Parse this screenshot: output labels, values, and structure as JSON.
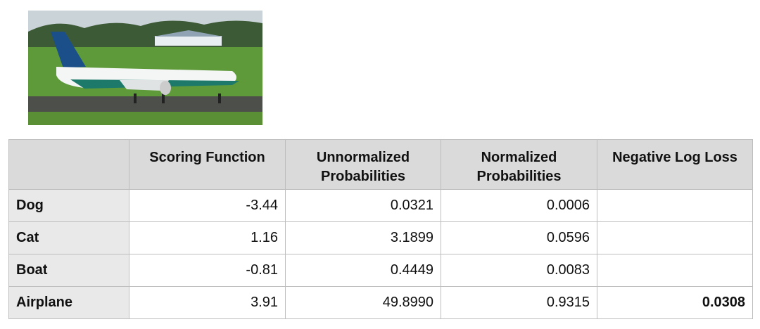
{
  "table": {
    "header": [
      "Scoring Function",
      "Unnormalized Probabilities",
      "Normalized Probabilities",
      "Negative Log Loss"
    ],
    "rows": [
      {
        "label": "Dog",
        "cells": [
          "-3.44",
          "0.0321",
          "0.0006"
        ]
      },
      {
        "label": "Cat",
        "cells": [
          "1.16",
          "3.1899",
          "0.0596"
        ]
      },
      {
        "label": "Boat",
        "cells": [
          "-0.81",
          "0.4449",
          "0.0083"
        ]
      },
      {
        "label": "Airplane",
        "cells": [
          "3.91",
          "49.8990",
          "0.9315",
          "0.0308"
        ]
      }
    ]
  }
}
